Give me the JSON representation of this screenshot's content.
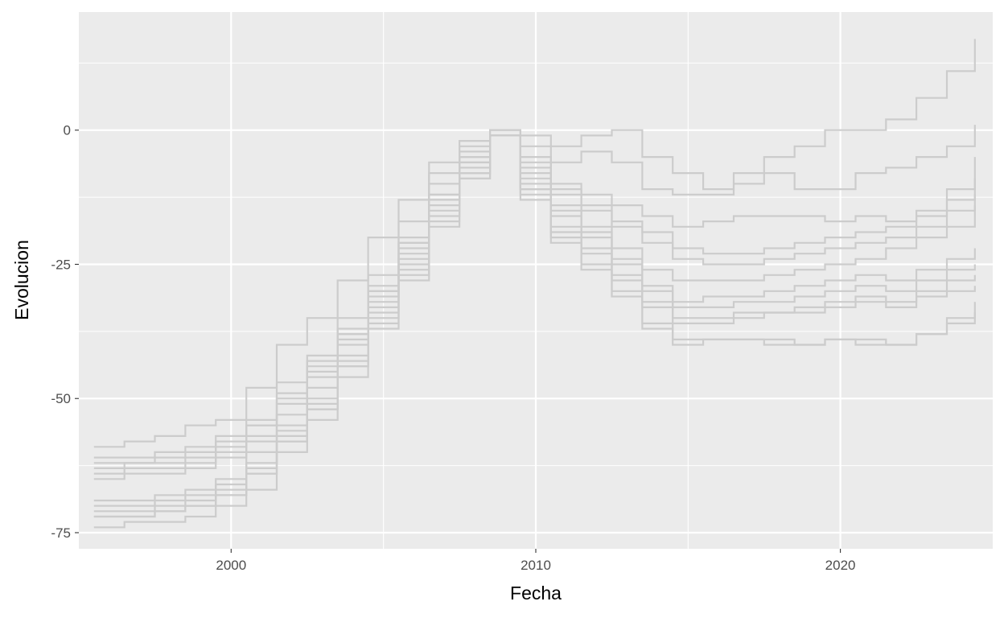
{
  "chart_data": {
    "type": "line",
    "step": true,
    "title": "",
    "xlabel": "Fecha",
    "ylabel": "Evolucion",
    "xlim": [
      "1995-01-01",
      "2025-01-01"
    ],
    "ylim": [
      -78,
      22
    ],
    "xticks": [
      {
        "value": "2000-01-01",
        "label": "2000"
      },
      {
        "value": "2010-01-01",
        "label": "2010"
      },
      {
        "value": "2020-01-01",
        "label": "2020"
      }
    ],
    "yticks": [
      {
        "value": 0,
        "label": "0"
      },
      {
        "value": -25,
        "label": "-25"
      },
      {
        "value": -50,
        "label": "-50"
      },
      {
        "value": -75,
        "label": "-75"
      }
    ],
    "grid": true,
    "legend": "none",
    "colors": {
      "panel": "#ebebeb",
      "grid": "#ffffff",
      "line": "#cccccc"
    },
    "series": [
      {
        "x": [
          "1995-07-01",
          "1996-07-01",
          "1997-07-01",
          "1998-07-01",
          "1999-07-01",
          "2000-07-01",
          "2001-07-01",
          "2002-07-01",
          "2003-07-01",
          "2004-07-01",
          "2005-07-01",
          "2006-07-01",
          "2007-07-01",
          "2008-07-01",
          "2009-07-01",
          "2010-07-01",
          "2011-07-01",
          "2012-07-01",
          "2013-07-01",
          "2014-07-01",
          "2015-07-01",
          "2016-07-01",
          "2017-07-01",
          "2018-07-01",
          "2019-07-01",
          "2020-07-01",
          "2021-07-01",
          "2022-07-01",
          "2023-07-01",
          "2024-06-01"
        ],
        "values": [
          -59,
          -58,
          -57,
          -55,
          -54,
          -48,
          -40,
          -35,
          -28,
          -20,
          -13,
          -6,
          -2,
          0,
          -1,
          -3,
          -1,
          0,
          -5,
          -8,
          -11,
          -8,
          -5,
          -3,
          0,
          0,
          2,
          6,
          11,
          17
        ]
      },
      {
        "x": [
          "1995-07-01",
          "1996-07-01",
          "1997-07-01",
          "1998-07-01",
          "1999-07-01",
          "2000-07-01",
          "2001-07-01",
          "2002-07-01",
          "2003-07-01",
          "2004-07-01",
          "2005-07-01",
          "2006-07-01",
          "2007-07-01",
          "2008-07-01",
          "2009-07-01",
          "2010-07-01",
          "2011-07-01",
          "2012-07-01",
          "2013-07-01",
          "2014-07-01",
          "2015-07-01",
          "2016-07-01",
          "2017-07-01",
          "2018-07-01",
          "2019-07-01",
          "2020-07-01",
          "2021-07-01",
          "2022-07-01",
          "2023-07-01",
          "2024-06-01"
        ],
        "values": [
          -61,
          -61,
          -60,
          -59,
          -57,
          -54,
          -47,
          -42,
          -35,
          -27,
          -17,
          -8,
          -3,
          0,
          -3,
          -6,
          -4,
          -6,
          -11,
          -12,
          -12,
          -10,
          -8,
          -11,
          -11,
          -8,
          -7,
          -5,
          -3,
          1
        ]
      },
      {
        "x": [
          "1995-07-01",
          "1996-07-01",
          "1997-07-01",
          "1998-07-01",
          "1999-07-01",
          "2000-07-01",
          "2001-07-01",
          "2002-07-01",
          "2003-07-01",
          "2004-07-01",
          "2005-07-01",
          "2006-07-01",
          "2007-07-01",
          "2008-07-01",
          "2009-07-01",
          "2010-07-01",
          "2011-07-01",
          "2012-07-01",
          "2013-07-01",
          "2014-07-01",
          "2015-07-01",
          "2016-07-01",
          "2017-07-01",
          "2018-07-01",
          "2019-07-01",
          "2020-07-01",
          "2021-07-01",
          "2022-07-01",
          "2023-07-01",
          "2024-06-01"
        ],
        "values": [
          -63,
          -62,
          -62,
          -61,
          -59,
          -55,
          -49,
          -43,
          -37,
          -29,
          -20,
          -10,
          -4,
          -1,
          -5,
          -10,
          -12,
          -14,
          -16,
          -18,
          -17,
          -16,
          -16,
          -16,
          -17,
          -16,
          -17,
          -15,
          -11,
          -5
        ]
      },
      {
        "x": [
          "1995-07-01",
          "1996-07-01",
          "1997-07-01",
          "1998-07-01",
          "1999-07-01",
          "2000-07-01",
          "2001-07-01",
          "2002-07-01",
          "2003-07-01",
          "2004-07-01",
          "2005-07-01",
          "2006-07-01",
          "2007-07-01",
          "2008-07-01",
          "2009-07-01",
          "2010-07-01",
          "2011-07-01",
          "2012-07-01",
          "2013-07-01",
          "2014-07-01",
          "2015-07-01",
          "2016-07-01",
          "2017-07-01",
          "2018-07-01",
          "2019-07-01",
          "2020-07-01",
          "2021-07-01",
          "2022-07-01",
          "2023-07-01",
          "2024-06-01"
        ],
        "values": [
          -64,
          -63,
          -63,
          -62,
          -60,
          -57,
          -51,
          -45,
          -38,
          -30,
          -21,
          -12,
          -5,
          -1,
          -6,
          -11,
          -14,
          -17,
          -19,
          -22,
          -23,
          -23,
          -22,
          -21,
          -20,
          -19,
          -18,
          -16,
          -13,
          -9
        ]
      },
      {
        "x": [
          "1995-07-01",
          "1996-07-01",
          "1997-07-01",
          "1998-07-01",
          "1999-07-01",
          "2000-07-01",
          "2001-07-01",
          "2002-07-01",
          "2003-07-01",
          "2004-07-01",
          "2005-07-01",
          "2006-07-01",
          "2007-07-01",
          "2008-07-01",
          "2009-07-01",
          "2010-07-01",
          "2011-07-01",
          "2012-07-01",
          "2013-07-01",
          "2014-07-01",
          "2015-07-01",
          "2016-07-01",
          "2017-07-01",
          "2018-07-01",
          "2019-07-01",
          "2020-07-01",
          "2021-07-01",
          "2022-07-01",
          "2023-07-01",
          "2024-06-01"
        ],
        "values": [
          -65,
          -64,
          -64,
          -63,
          -61,
          -58,
          -53,
          -46,
          -39,
          -31,
          -22,
          -13,
          -6,
          -1,
          -7,
          -12,
          -15,
          -18,
          -21,
          -24,
          -25,
          -25,
          -24,
          -23,
          -22,
          -21,
          -20,
          -18,
          -15,
          -12
        ]
      },
      {
        "x": [
          "1995-07-01",
          "1996-07-01",
          "1997-07-01",
          "1998-07-01",
          "1999-07-01",
          "2000-07-01",
          "2001-07-01",
          "2002-07-01",
          "2003-07-01",
          "2004-07-01",
          "2005-07-01",
          "2006-07-01",
          "2007-07-01",
          "2008-07-01",
          "2009-07-01",
          "2010-07-01",
          "2011-07-01",
          "2012-07-01",
          "2013-07-01",
          "2014-07-01",
          "2015-07-01",
          "2016-07-01",
          "2017-07-01",
          "2018-07-01",
          "2019-07-01",
          "2020-07-01",
          "2021-07-01",
          "2022-07-01",
          "2023-07-01",
          "2024-06-01"
        ],
        "values": [
          -62,
          -62,
          -61,
          -60,
          -58,
          -55,
          -50,
          -44,
          -38,
          -30,
          -21,
          -12,
          -5,
          -1,
          -8,
          -14,
          -18,
          -22,
          -26,
          -28,
          -28,
          -28,
          -27,
          -26,
          -25,
          -24,
          -22,
          -20,
          -18,
          -14
        ]
      },
      {
        "x": [
          "1995-07-01",
          "1996-07-01",
          "1997-07-01",
          "1998-07-01",
          "1999-07-01",
          "2000-07-01",
          "2001-07-01",
          "2002-07-01",
          "2003-07-01",
          "2004-07-01",
          "2005-07-01",
          "2006-07-01",
          "2007-07-01",
          "2008-07-01",
          "2009-07-01",
          "2010-07-01",
          "2011-07-01",
          "2012-07-01",
          "2013-07-01",
          "2014-07-01",
          "2015-07-01",
          "2016-07-01",
          "2017-07-01",
          "2018-07-01",
          "2019-07-01",
          "2020-07-01",
          "2021-07-01",
          "2022-07-01",
          "2023-07-01",
          "2024-06-01"
        ],
        "values": [
          -69,
          -69,
          -68,
          -67,
          -65,
          -60,
          -55,
          -48,
          -40,
          -32,
          -23,
          -13,
          -6,
          -1,
          -9,
          -15,
          -19,
          -24,
          -29,
          -32,
          -31,
          -31,
          -30,
          -29,
          -28,
          -27,
          -28,
          -26,
          -24,
          -22
        ]
      },
      {
        "x": [
          "1995-07-01",
          "1996-07-01",
          "1997-07-01",
          "1998-07-01",
          "1999-07-01",
          "2000-07-01",
          "2001-07-01",
          "2002-07-01",
          "2003-07-01",
          "2004-07-01",
          "2005-07-01",
          "2006-07-01",
          "2007-07-01",
          "2008-07-01",
          "2009-07-01",
          "2010-07-01",
          "2011-07-01",
          "2012-07-01",
          "2013-07-01",
          "2014-07-01",
          "2015-07-01",
          "2016-07-01",
          "2017-07-01",
          "2018-07-01",
          "2019-07-01",
          "2020-07-01",
          "2021-07-01",
          "2022-07-01",
          "2023-07-01",
          "2024-06-01"
        ],
        "values": [
          -70,
          -70,
          -69,
          -68,
          -66,
          -62,
          -56,
          -50,
          -42,
          -33,
          -24,
          -14,
          -7,
          -1,
          -10,
          -16,
          -20,
          -25,
          -30,
          -33,
          -33,
          -32,
          -32,
          -31,
          -30,
          -29,
          -30,
          -28,
          -26,
          -25
        ]
      },
      {
        "x": [
          "1995-07-01",
          "1996-07-01",
          "1997-07-01",
          "1998-07-01",
          "1999-07-01",
          "2000-07-01",
          "2001-07-01",
          "2002-07-01",
          "2003-07-01",
          "2004-07-01",
          "2005-07-01",
          "2006-07-01",
          "2007-07-01",
          "2008-07-01",
          "2009-07-01",
          "2010-07-01",
          "2011-07-01",
          "2012-07-01",
          "2013-07-01",
          "2014-07-01",
          "2015-07-01",
          "2016-07-01",
          "2017-07-01",
          "2018-07-01",
          "2019-07-01",
          "2020-07-01",
          "2021-07-01",
          "2022-07-01",
          "2023-07-01",
          "2024-06-01"
        ],
        "values": [
          -71,
          -71,
          -70,
          -69,
          -67,
          -63,
          -57,
          -51,
          -43,
          -34,
          -25,
          -15,
          -8,
          -1,
          -11,
          -18,
          -22,
          -27,
          -32,
          -35,
          -35,
          -34,
          -34,
          -33,
          -32,
          -31,
          -32,
          -30,
          -28,
          -27
        ]
      },
      {
        "x": [
          "1995-07-01",
          "1996-07-01",
          "1997-07-01",
          "1998-07-01",
          "1999-07-01",
          "2000-07-01",
          "2001-07-01",
          "2002-07-01",
          "2003-07-01",
          "2004-07-01",
          "2005-07-01",
          "2006-07-01",
          "2007-07-01",
          "2008-07-01",
          "2009-07-01",
          "2010-07-01",
          "2011-07-01",
          "2012-07-01",
          "2013-07-01",
          "2014-07-01",
          "2015-07-01",
          "2016-07-01",
          "2017-07-01",
          "2018-07-01",
          "2019-07-01",
          "2020-07-01",
          "2021-07-01",
          "2022-07-01",
          "2023-07-01",
          "2024-06-01"
        ],
        "values": [
          -72,
          -72,
          -71,
          -70,
          -68,
          -64,
          -58,
          -52,
          -44,
          -35,
          -26,
          -16,
          -8,
          -1,
          -11,
          -19,
          -23,
          -28,
          -33,
          -36,
          -36,
          -35,
          -34,
          -34,
          -33,
          -32,
          -33,
          -31,
          -30,
          -29
        ]
      },
      {
        "x": [
          "1995-07-01",
          "1996-07-01",
          "1997-07-01",
          "1998-07-01",
          "1999-07-01",
          "2000-07-01",
          "2001-07-01",
          "2002-07-01",
          "2003-07-01",
          "2004-07-01",
          "2005-07-01",
          "2006-07-01",
          "2007-07-01",
          "2008-07-01",
          "2009-07-01",
          "2010-07-01",
          "2011-07-01",
          "2012-07-01",
          "2013-07-01",
          "2014-07-01",
          "2015-07-01",
          "2016-07-01",
          "2017-07-01",
          "2018-07-01",
          "2019-07-01",
          "2020-07-01",
          "2021-07-01",
          "2022-07-01",
          "2023-07-01",
          "2024-06-01"
        ],
        "values": [
          -72,
          -72,
          -71,
          -70,
          -68,
          -64,
          -58,
          -52,
          -44,
          -36,
          -27,
          -17,
          -9,
          -1,
          -12,
          -20,
          -25,
          -30,
          -36,
          -39,
          -39,
          -39,
          -39,
          -40,
          -39,
          -39,
          -40,
          -38,
          -35,
          -32
        ]
      },
      {
        "x": [
          "1995-07-01",
          "1996-07-01",
          "1997-07-01",
          "1998-07-01",
          "1999-07-01",
          "2000-07-01",
          "2001-07-01",
          "2002-07-01",
          "2003-07-01",
          "2004-07-01",
          "2005-07-01",
          "2006-07-01",
          "2007-07-01",
          "2008-07-01",
          "2009-07-01",
          "2010-07-01",
          "2011-07-01",
          "2012-07-01",
          "2013-07-01",
          "2014-07-01",
          "2015-07-01",
          "2016-07-01",
          "2017-07-01",
          "2018-07-01",
          "2019-07-01",
          "2020-07-01",
          "2021-07-01",
          "2022-07-01",
          "2023-07-01",
          "2024-06-01"
        ],
        "values": [
          -74,
          -73,
          -73,
          -72,
          -70,
          -67,
          -60,
          -54,
          -46,
          -37,
          -28,
          -18,
          -9,
          -1,
          -13,
          -21,
          -26,
          -31,
          -37,
          -40,
          -39,
          -39,
          -40,
          -40,
          -39,
          -40,
          -40,
          -38,
          -36,
          -34
        ]
      }
    ]
  }
}
